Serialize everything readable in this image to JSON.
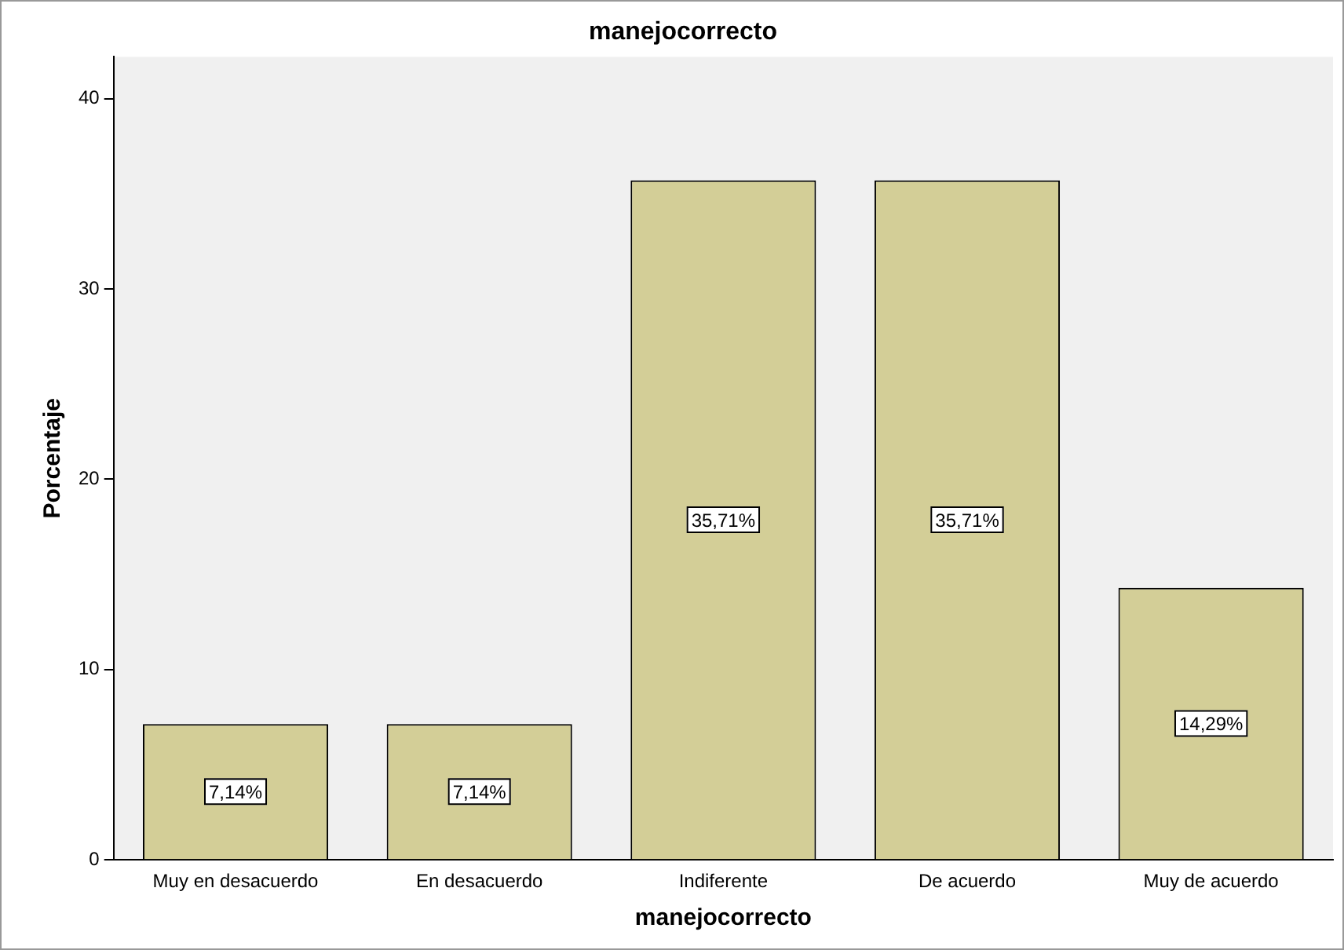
{
  "chart_data": {
    "type": "bar",
    "title": "manejocorrecto",
    "xlabel": "manejocorrecto",
    "ylabel": "Porcentaje",
    "categories": [
      "Muy en desacuerdo",
      "En desacuerdo",
      "Indiferente",
      "De acuerdo",
      "Muy de acuerdo"
    ],
    "values": [
      7.14,
      7.14,
      35.71,
      35.71,
      14.29
    ],
    "value_labels": [
      "7,14%",
      "7,14%",
      "35,71%",
      "35,71%",
      "14,29%"
    ],
    "color": "#d3ce97",
    "ylim": [
      0,
      42.2
    ],
    "yticks": [
      0,
      10,
      20,
      30,
      40
    ],
    "grid": false,
    "legend": false
  }
}
